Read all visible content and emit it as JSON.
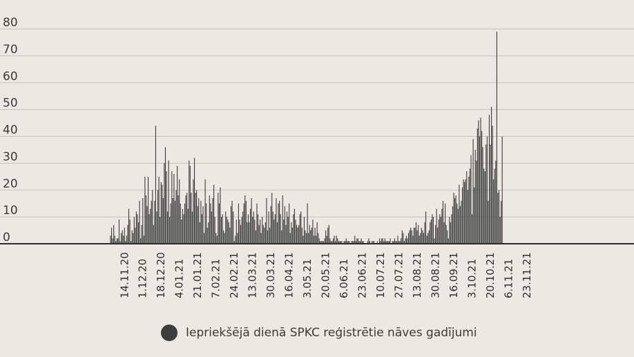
{
  "chart_data": {
    "type": "bar",
    "ylim": [
      0,
      80
    ],
    "yticks": [
      "0",
      "10",
      "20",
      "30",
      "40",
      "50",
      "60",
      "70",
      "80"
    ],
    "grid": true,
    "legend_placement": "bottom-center",
    "x_tick_labels": [
      "14.11.20",
      "1.12.20",
      "18.12.20",
      "4.01.21",
      "21.01.21",
      "7.02.21",
      "24.02.21",
      "13.03.21",
      "30.03.21",
      "16.04.21",
      "3.05.21",
      "20.05.21",
      "6.06.21",
      "23.06.21",
      "10.07.21",
      "27.07.21",
      "13.08.21",
      "30.08.21",
      "16.09.21",
      "3.10.21",
      "20.10.21",
      "6.11.21",
      "23.11.21"
    ],
    "x_range": [
      "1.11.20",
      "23.11.21"
    ],
    "colors": {
      "bars": "#3d3d3d",
      "grid": "#c4c2ba",
      "axis": "#2e2e2e",
      "background": "#ebe9e1"
    },
    "series": [
      {
        "name": "Iepriekšējā dienā SPKC reģistrētie nāves gadījumi",
        "x_start": "1.11.20",
        "values": [
          3,
          6,
          2,
          7,
          3,
          1,
          2,
          2,
          9,
          1,
          4,
          5,
          3,
          6,
          1,
          3,
          7,
          13,
          9,
          1,
          5,
          4,
          10,
          6,
          12,
          11,
          8,
          16,
          2,
          7,
          17,
          3,
          25,
          18,
          14,
          25,
          11,
          13,
          16,
          20,
          7,
          16,
          44,
          12,
          20,
          25,
          10,
          23,
          22,
          17,
          30,
          36,
          27,
          12,
          31,
          10,
          15,
          27,
          17,
          26,
          16,
          20,
          29,
          18,
          24,
          15,
          9,
          13,
          11,
          15,
          18,
          19,
          13,
          31,
          29,
          19,
          12,
          24,
          32,
          19,
          20,
          14,
          17,
          8,
          16,
          11,
          14,
          4,
          24,
          15,
          6,
          8,
          18,
          15,
          12,
          17,
          22,
          10,
          4,
          3,
          19,
          15,
          21,
          10,
          11,
          5,
          4,
          12,
          10,
          9,
          8,
          6,
          14,
          16,
          12,
          1,
          3,
          9,
          4,
          15,
          9,
          7,
          10,
          12,
          15,
          18,
          16,
          8,
          11,
          8,
          13,
          17,
          10,
          12,
          9,
          5,
          15,
          11,
          7,
          9,
          4,
          10,
          7,
          6,
          8,
          17,
          5,
          12,
          6,
          14,
          19,
          12,
          9,
          11,
          17,
          8,
          15,
          16,
          11,
          5,
          18,
          9,
          14,
          7,
          12,
          10,
          15,
          4,
          8,
          6,
          11,
          13,
          9,
          7,
          6,
          7,
          11,
          12,
          6,
          3,
          10,
          5,
          4,
          15,
          4,
          7,
          5,
          6,
          9,
          3,
          6,
          3,
          8,
          4,
          2,
          1,
          1,
          1,
          1,
          2,
          5,
          3,
          6,
          7,
          2,
          1,
          1,
          2,
          3,
          1,
          3,
          2,
          1,
          1,
          1,
          1,
          0,
          1,
          1,
          2,
          1,
          1,
          1,
          0,
          1,
          1,
          1,
          3,
          1,
          2,
          2,
          1,
          1,
          2,
          1,
          1,
          0,
          0,
          0,
          1,
          2,
          1,
          0,
          1,
          1,
          1,
          0,
          0,
          1,
          0,
          2,
          1,
          2,
          2,
          1,
          2,
          1,
          1,
          1,
          1,
          2,
          0,
          1,
          1,
          2,
          1,
          1,
          3,
          1,
          1,
          2,
          5,
          4,
          1,
          2,
          3,
          2,
          4,
          5,
          6,
          5,
          3,
          6,
          6,
          8,
          5,
          7,
          3,
          4,
          6,
          5,
          4,
          8,
          12,
          3,
          4,
          5,
          8,
          9,
          11,
          10,
          2,
          7,
          13,
          6,
          9,
          11,
          10,
          13,
          16,
          8,
          15,
          7,
          5,
          2,
          10,
          8,
          11,
          14,
          19,
          17,
          18,
          15,
          13,
          22,
          14,
          16,
          21,
          24,
          23,
          24,
          27,
          20,
          25,
          28,
          33,
          11,
          39,
          21,
          35,
          31,
          43,
          46,
          40,
          47,
          42,
          36,
          28,
          27,
          37,
          40,
          16,
          48,
          37,
          51,
          44,
          24,
          28,
          31,
          79,
          19,
          20,
          10,
          16,
          40
        ]
      }
    ]
  },
  "legend": {
    "label": "Iepriekšējā dienā SPKC reģistrētie nāves gadījumi"
  }
}
